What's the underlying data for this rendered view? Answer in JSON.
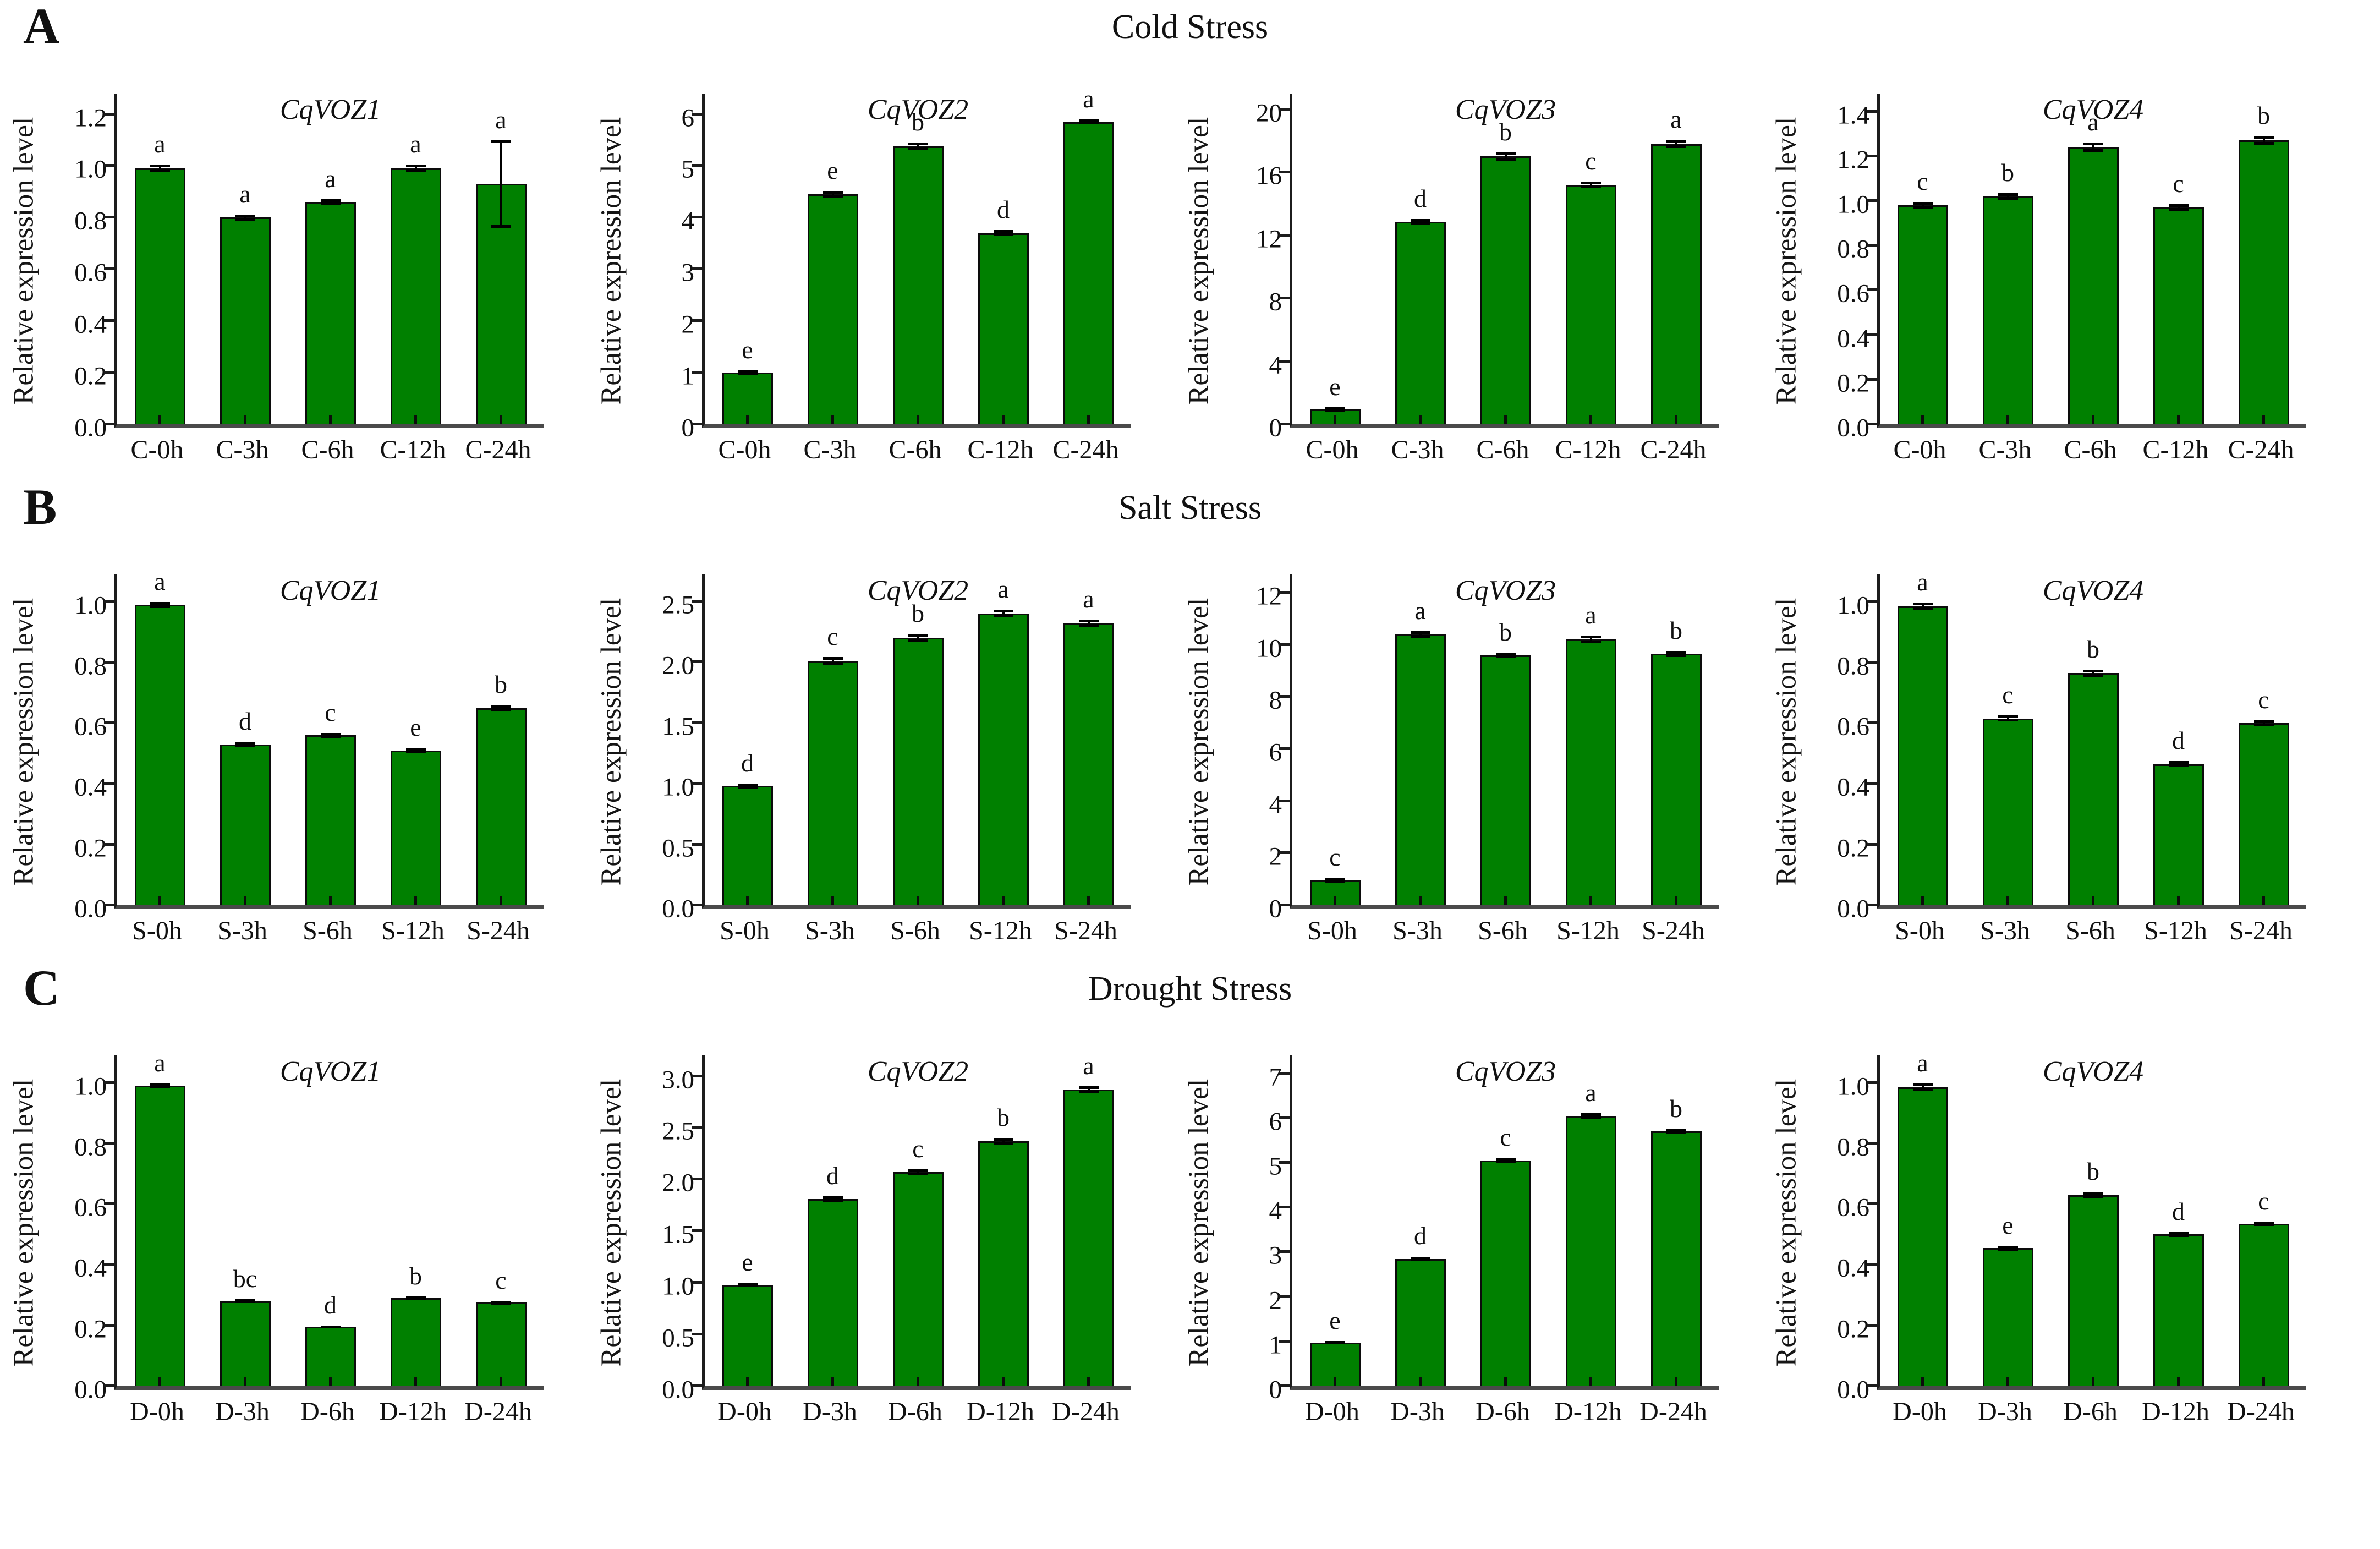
{
  "figure": {
    "ylabel": "Relative expression level",
    "bar_color": "#008000",
    "bar_border_color": "#0c0c0c",
    "error_bar_color": "#000000",
    "text_color": "#111111",
    "panels": [
      "A",
      "B",
      "C"
    ],
    "row_titles": [
      "Cold Stress",
      "Salt Stress",
      "Drought Stress"
    ]
  },
  "chart_data": [
    {
      "type": "bar",
      "panel": "A",
      "panel_title": "Cold Stress",
      "gene": "CqVOZ1",
      "ylabel": "Relative expression level",
      "categories": [
        "C-0h",
        "C-3h",
        "C-6h",
        "C-12h",
        "C-24h"
      ],
      "values": [
        0.99,
        0.8,
        0.86,
        0.99,
        0.93
      ],
      "errors": [
        0.015,
        0.012,
        0.012,
        0.015,
        0.17
      ],
      "letters": [
        "a",
        "a",
        "a",
        "a",
        "a"
      ],
      "ytick_values": [
        0,
        0.2,
        0.4,
        0.6,
        0.8,
        1.0,
        1.2
      ],
      "ytick_labels": [
        "0.0",
        "0.2",
        "0.4",
        "0.6",
        "0.8",
        "1.0",
        "1.2"
      ],
      "ylim": [
        0,
        1.28
      ]
    },
    {
      "type": "bar",
      "panel": "A",
      "panel_title": "Cold Stress",
      "gene": "CqVOZ2",
      "ylabel": "Relative expression level",
      "categories": [
        "C-0h",
        "C-3h",
        "C-6h",
        "C-12h",
        "C-24h"
      ],
      "values": [
        1.0,
        4.45,
        5.38,
        3.7,
        5.85
      ],
      "errors": [
        0.04,
        0.06,
        0.07,
        0.06,
        0.05
      ],
      "letters": [
        "e",
        "e",
        "b",
        "d",
        "a"
      ],
      "ytick_values": [
        0,
        1,
        2,
        3,
        4,
        5,
        6
      ],
      "ytick_labels": [
        "0",
        "1",
        "2",
        "3",
        "4",
        "5",
        "6"
      ],
      "ylim": [
        0,
        6.4
      ]
    },
    {
      "type": "bar",
      "panel": "A",
      "panel_title": "Cold Stress",
      "gene": "CqVOZ3",
      "ylabel": "Relative expression level",
      "categories": [
        "C-0h",
        "C-3h",
        "C-6h",
        "C-12h",
        "C-24h"
      ],
      "values": [
        0.95,
        12.85,
        17.0,
        15.2,
        17.8
      ],
      "errors": [
        0.15,
        0.2,
        0.25,
        0.2,
        0.25
      ],
      "letters": [
        "e",
        "d",
        "b",
        "c",
        "a"
      ],
      "ytick_values": [
        0,
        4,
        8,
        12,
        16,
        20
      ],
      "ytick_labels": [
        "0",
        "4",
        "8",
        "12",
        "16",
        "20"
      ],
      "ylim": [
        0,
        21
      ]
    },
    {
      "type": "bar",
      "panel": "A",
      "panel_title": "Cold Stress",
      "gene": "CqVOZ4",
      "ylabel": "Relative expression level",
      "categories": [
        "C-0h",
        "C-3h",
        "C-6h",
        "C-12h",
        "C-24h"
      ],
      "values": [
        0.98,
        1.02,
        1.24,
        0.97,
        1.27
      ],
      "errors": [
        0.015,
        0.015,
        0.02,
        0.015,
        0.02
      ],
      "letters": [
        "c",
        "b",
        "a",
        "c",
        "b"
      ],
      "ytick_values": [
        0,
        0.2,
        0.4,
        0.6,
        0.8,
        1.0,
        1.2,
        1.4
      ],
      "ytick_labels": [
        "0.0",
        "0.2",
        "0.4",
        "0.6",
        "0.8",
        "1.0",
        "1.2",
        "1.4"
      ],
      "ylim": [
        0,
        1.48
      ]
    },
    {
      "type": "bar",
      "panel": "B",
      "panel_title": "Salt Stress",
      "gene": "CqVOZ1",
      "ylabel": "Relative expression level",
      "categories": [
        "S-0h",
        "S-3h",
        "S-6h",
        "S-12h",
        "S-24h"
      ],
      "values": [
        0.99,
        0.53,
        0.56,
        0.51,
        0.65
      ],
      "errors": [
        0.01,
        0.008,
        0.008,
        0.008,
        0.01
      ],
      "letters": [
        "a",
        "d",
        "c",
        "e",
        "b"
      ],
      "ytick_values": [
        0,
        0.2,
        0.4,
        0.6,
        0.8,
        1.0
      ],
      "ytick_labels": [
        "0.0",
        "0.2",
        "0.4",
        "0.6",
        "0.8",
        "1.0"
      ],
      "ylim": [
        0,
        1.09
      ]
    },
    {
      "type": "bar",
      "panel": "B",
      "panel_title": "Salt Stress",
      "gene": "CqVOZ2",
      "ylabel": "Relative expression level",
      "categories": [
        "S-0h",
        "S-3h",
        "S-6h",
        "S-12h",
        "S-24h"
      ],
      "values": [
        0.98,
        2.01,
        2.2,
        2.4,
        2.32
      ],
      "errors": [
        0.02,
        0.03,
        0.03,
        0.03,
        0.03
      ],
      "letters": [
        "d",
        "c",
        "b",
        "a",
        "a"
      ],
      "ytick_values": [
        0,
        0.5,
        1.0,
        1.5,
        2.0,
        2.5
      ],
      "ytick_labels": [
        "0.0",
        "0.5",
        "1.0",
        "1.5",
        "2.0",
        "2.5"
      ],
      "ylim": [
        0,
        2.72
      ]
    },
    {
      "type": "bar",
      "panel": "B",
      "panel_title": "Salt Stress",
      "gene": "CqVOZ3",
      "ylabel": "Relative expression level",
      "categories": [
        "S-0h",
        "S-3h",
        "S-6h",
        "S-12h",
        "S-24h"
      ],
      "values": [
        0.95,
        10.4,
        9.6,
        10.2,
        9.65
      ],
      "errors": [
        0.1,
        0.12,
        0.1,
        0.15,
        0.12
      ],
      "letters": [
        "c",
        "a",
        "b",
        "a",
        "b"
      ],
      "ytick_values": [
        0,
        2,
        4,
        6,
        8,
        10,
        12
      ],
      "ytick_labels": [
        "0",
        "2",
        "4",
        "6",
        "8",
        "10",
        "12"
      ],
      "ylim": [
        0,
        12.7
      ]
    },
    {
      "type": "bar",
      "panel": "B",
      "panel_title": "Salt Stress",
      "gene": "CqVOZ4",
      "ylabel": "Relative expression level",
      "categories": [
        "S-0h",
        "S-3h",
        "S-6h",
        "S-12h",
        "S-24h"
      ],
      "values": [
        0.985,
        0.615,
        0.765,
        0.465,
        0.6
      ],
      "errors": [
        0.012,
        0.01,
        0.012,
        0.01,
        0.01
      ],
      "letters": [
        "a",
        "c",
        "b",
        "d",
        "c"
      ],
      "ytick_values": [
        0,
        0.2,
        0.4,
        0.6,
        0.8,
        1.0
      ],
      "ytick_labels": [
        "0.0",
        "0.2",
        "0.4",
        "0.6",
        "0.8",
        "1.0"
      ],
      "ylim": [
        0,
        1.09
      ]
    },
    {
      "type": "bar",
      "panel": "C",
      "panel_title": "Drought Stress",
      "gene": "CqVOZ1",
      "ylabel": "Relative expression level",
      "categories": [
        "D-0h",
        "D-3h",
        "D-6h",
        "D-12h",
        "D-24h"
      ],
      "values": [
        0.99,
        0.28,
        0.195,
        0.29,
        0.275
      ],
      "errors": [
        0.008,
        0.006,
        0.005,
        0.006,
        0.006
      ],
      "letters": [
        "a",
        "bc",
        "d",
        "b",
        "c"
      ],
      "ytick_values": [
        0,
        0.2,
        0.4,
        0.6,
        0.8,
        1.0
      ],
      "ytick_labels": [
        "0.0",
        "0.2",
        "0.4",
        "0.6",
        "0.8",
        "1.0"
      ],
      "ylim": [
        0,
        1.09
      ]
    },
    {
      "type": "bar",
      "panel": "C",
      "panel_title": "Drought Stress",
      "gene": "CqVOZ2",
      "ylabel": "Relative expression level",
      "categories": [
        "D-0h",
        "D-3h",
        "D-6h",
        "D-12h",
        "D-24h"
      ],
      "values": [
        0.98,
        1.81,
        2.07,
        2.37,
        2.87
      ],
      "errors": [
        0.02,
        0.025,
        0.03,
        0.03,
        0.03
      ],
      "letters": [
        "e",
        "d",
        "c",
        "b",
        "a"
      ],
      "ytick_values": [
        0,
        0.5,
        1.0,
        1.5,
        2.0,
        2.5,
        3.0
      ],
      "ytick_labels": [
        "0.0",
        "0.5",
        "1.0",
        "1.5",
        "2.0",
        "2.5",
        "3.0"
      ],
      "ylim": [
        0,
        3.2
      ]
    },
    {
      "type": "bar",
      "panel": "C",
      "panel_title": "Drought Stress",
      "gene": "CqVOZ3",
      "ylabel": "Relative expression level",
      "categories": [
        "D-0h",
        "D-3h",
        "D-6h",
        "D-12h",
        "D-24h"
      ],
      "values": [
        0.97,
        2.85,
        5.05,
        6.05,
        5.7
      ],
      "errors": [
        0.04,
        0.05,
        0.06,
        0.06,
        0.05
      ],
      "letters": [
        "e",
        "d",
        "c",
        "a",
        "b"
      ],
      "ytick_values": [
        0,
        1,
        2,
        3,
        4,
        5,
        6,
        7
      ],
      "ytick_labels": [
        "0",
        "1",
        "2",
        "3",
        "4",
        "5",
        "6",
        "7"
      ],
      "ylim": [
        0,
        7.4
      ]
    },
    {
      "type": "bar",
      "panel": "C",
      "panel_title": "Drought Stress",
      "gene": "CqVOZ4",
      "ylabel": "Relative expression level",
      "categories": [
        "D-0h",
        "D-3h",
        "D-6h",
        "D-12h",
        "D-24h"
      ],
      "values": [
        0.985,
        0.455,
        0.63,
        0.5,
        0.535
      ],
      "errors": [
        0.012,
        0.008,
        0.01,
        0.008,
        0.008
      ],
      "letters": [
        "a",
        "e",
        "b",
        "d",
        "c"
      ],
      "ytick_values": [
        0,
        0.2,
        0.4,
        0.6,
        0.8,
        1.0
      ],
      "ytick_labels": [
        "0.0",
        "0.2",
        "0.4",
        "0.6",
        "0.8",
        "1.0"
      ],
      "ylim": [
        0,
        1.09
      ]
    }
  ]
}
